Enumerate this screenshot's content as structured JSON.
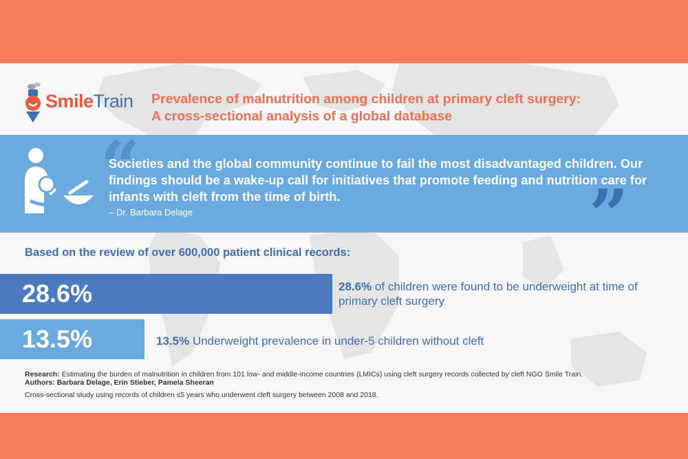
{
  "logo": {
    "smile": "Smile",
    "train": "Train"
  },
  "title": {
    "line1": "Prevalence of malnutrition among children at primary cleft surgery:",
    "line2": "A cross-sectional analysis of a global database"
  },
  "quote": {
    "text": "Societies and the global community continue to fail the most disadvantaged children. Our findings should be a wake-up call for initiatives that promote feeding and nutrition care for infants with cleft from the time of birth.",
    "author": "– Dr. Barbara Delage",
    "open_mark": "“",
    "close_mark": "”"
  },
  "review_heading": "Based on the review of over 600,000 patient clinical records:",
  "stats": [
    {
      "value": "28.6%",
      "pct": "28.6%",
      "text": " of children were found to be underweight at time of primary cleft surgery"
    },
    {
      "value": "13.5%",
      "pct": "13.5%",
      "text": " Underweight prevalence in under-5 children without cleft"
    }
  ],
  "footer": {
    "research_label": "Research:",
    "research_text": " Estimating the burden of malnutrition in children from 101 low- and middle-income countries (LMICs) using cleft surgery records collected by cleft NGO Smile Train.",
    "authors": "Authors: Barbara Delage, Erin Stieber, Pamela Sheeran",
    "cross_sectional": "Cross-sectional study using records of children ≤5 years who underwent cleft surgery between 2008 and 2018."
  },
  "colors": {
    "coral": "#f47c5a",
    "title_orange": "#ef7050",
    "blue_dark": "#4a7bbf",
    "blue_light": "#6aa9dd",
    "text_blue": "#3e6fb4"
  },
  "icons": [
    "smile-train-logo",
    "mother-feeding-baby-icon"
  ]
}
